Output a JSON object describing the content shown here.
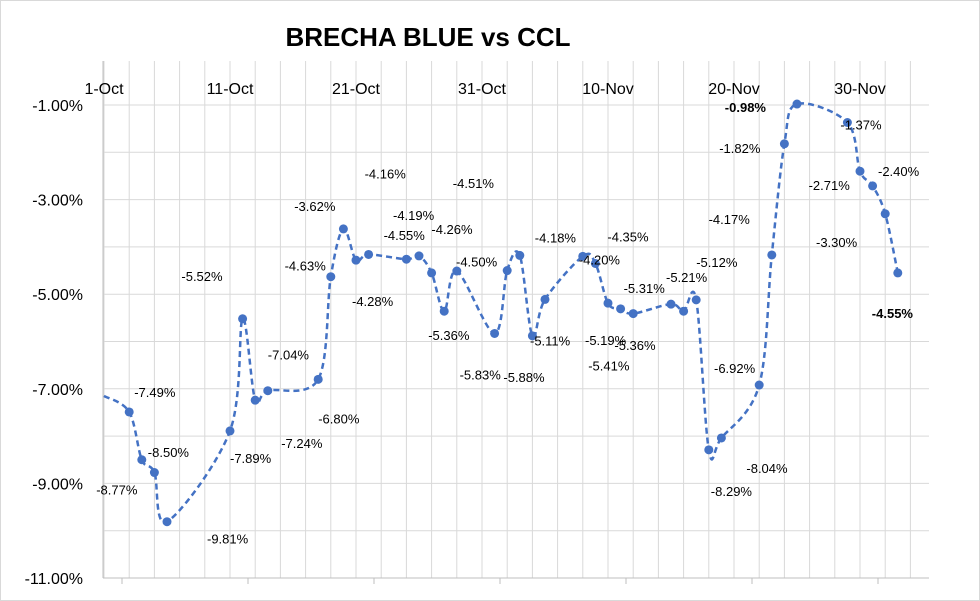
{
  "chart_data": {
    "type": "line",
    "title": "BRECHA BLUE vs CCL",
    "xlabel": "",
    "ylabel": "",
    "grid": true,
    "x_ticks": [
      "1-Oct",
      "11-Oct",
      "21-Oct",
      "31-Oct",
      "10-Nov",
      "20-Nov",
      "30-Nov"
    ],
    "y_ticks": [
      "-1.00%",
      "-3.00%",
      "-5.00%",
      "-7.00%",
      "-9.00%",
      "-11.00%"
    ],
    "ylim": [
      -11,
      -1
    ],
    "xlim": [
      "2021-10-01",
      "2021-12-05"
    ],
    "series": [
      {
        "color": "#4472C4",
        "line_style": "dashed",
        "markers": "circle",
        "points": [
          {
            "x": "2021-10-01",
            "y": -7.15
          },
          {
            "x": "2021-10-03",
            "y": -7.49,
            "label": "-7.49%"
          },
          {
            "x": "2021-10-04",
            "y": -8.5,
            "label": "-8.50%"
          },
          {
            "x": "2021-10-05",
            "y": -8.77,
            "label": "-8.77%"
          },
          {
            "x": "2021-10-06",
            "y": -9.81,
            "label": "-9.81%"
          },
          {
            "x": "2021-10-11",
            "y": -7.89,
            "label": "-7.89%"
          },
          {
            "x": "2021-10-12",
            "y": -5.52,
            "label": "-5.52%"
          },
          {
            "x": "2021-10-13",
            "y": -7.24,
            "label": "-7.24%"
          },
          {
            "x": "2021-10-14",
            "y": -7.04,
            "label": "-7.04%"
          },
          {
            "x": "2021-10-18",
            "y": -6.8,
            "label": "-6.80%"
          },
          {
            "x": "2021-10-19",
            "y": -4.63,
            "label": "-4.63%"
          },
          {
            "x": "2021-10-20",
            "y": -3.62,
            "label": "-3.62%"
          },
          {
            "x": "2021-10-21",
            "y": -4.28,
            "label": "-4.28%"
          },
          {
            "x": "2021-10-22",
            "y": -4.16,
            "label": "-4.16%"
          },
          {
            "x": "2021-10-25",
            "y": -4.26,
            "label": "-4.26%"
          },
          {
            "x": "2021-10-26",
            "y": -4.19,
            "label": "-4.19%"
          },
          {
            "x": "2021-10-27",
            "y": -4.55,
            "label": "-4.55%"
          },
          {
            "x": "2021-10-28",
            "y": -5.36,
            "label": "-5.36%"
          },
          {
            "x": "2021-10-29",
            "y": -4.51,
            "label": "-4.51%"
          },
          {
            "x": "2021-11-01",
            "y": -5.83,
            "label": "-5.83%"
          },
          {
            "x": "2021-11-02",
            "y": -4.5,
            "label": "-4.50%"
          },
          {
            "x": "2021-11-03",
            "y": -4.18,
            "label": "-4.18%"
          },
          {
            "x": "2021-11-04",
            "y": -5.88,
            "label": "-5.88%"
          },
          {
            "x": "2021-11-05",
            "y": -5.11,
            "label": "-5.11%"
          },
          {
            "x": "2021-11-08",
            "y": -4.2,
            "label": "-4.20%"
          },
          {
            "x": "2021-11-09",
            "y": -4.35,
            "label": "-4.35%"
          },
          {
            "x": "2021-11-10",
            "y": -5.19,
            "label": "-5.19%"
          },
          {
            "x": "2021-11-11",
            "y": -5.31,
            "label": "-5.31%"
          },
          {
            "x": "2021-11-12",
            "y": -5.41,
            "label": "-5.41%"
          },
          {
            "x": "2021-11-15",
            "y": -5.21,
            "label": "-5.21%"
          },
          {
            "x": "2021-11-16",
            "y": -5.36,
            "label": "-5.36%"
          },
          {
            "x": "2021-11-17",
            "y": -5.12,
            "label": "-5.12%"
          },
          {
            "x": "2021-11-18",
            "y": -8.29,
            "label": "-8.29%"
          },
          {
            "x": "2021-11-19",
            "y": -8.04,
            "label": "-8.04%"
          },
          {
            "x": "2021-11-22",
            "y": -6.92,
            "label": "-6.92%"
          },
          {
            "x": "2021-11-23",
            "y": -4.17,
            "label": "-4.17%"
          },
          {
            "x": "2021-11-24",
            "y": -1.82,
            "label": "-1.82%"
          },
          {
            "x": "2021-11-25",
            "y": -0.98,
            "label": "-0.98%"
          },
          {
            "x": "2021-11-29",
            "y": -1.37,
            "label": "-1.37%"
          },
          {
            "x": "2021-11-30",
            "y": -2.4,
            "label": "-2.40%"
          },
          {
            "x": "2021-12-01",
            "y": -2.71,
            "label": "-2.71%"
          },
          {
            "x": "2021-12-02",
            "y": -3.3,
            "label": "-3.30%"
          },
          {
            "x": "2021-12-03",
            "y": -4.55,
            "label": "-4.55%"
          }
        ]
      }
    ]
  }
}
